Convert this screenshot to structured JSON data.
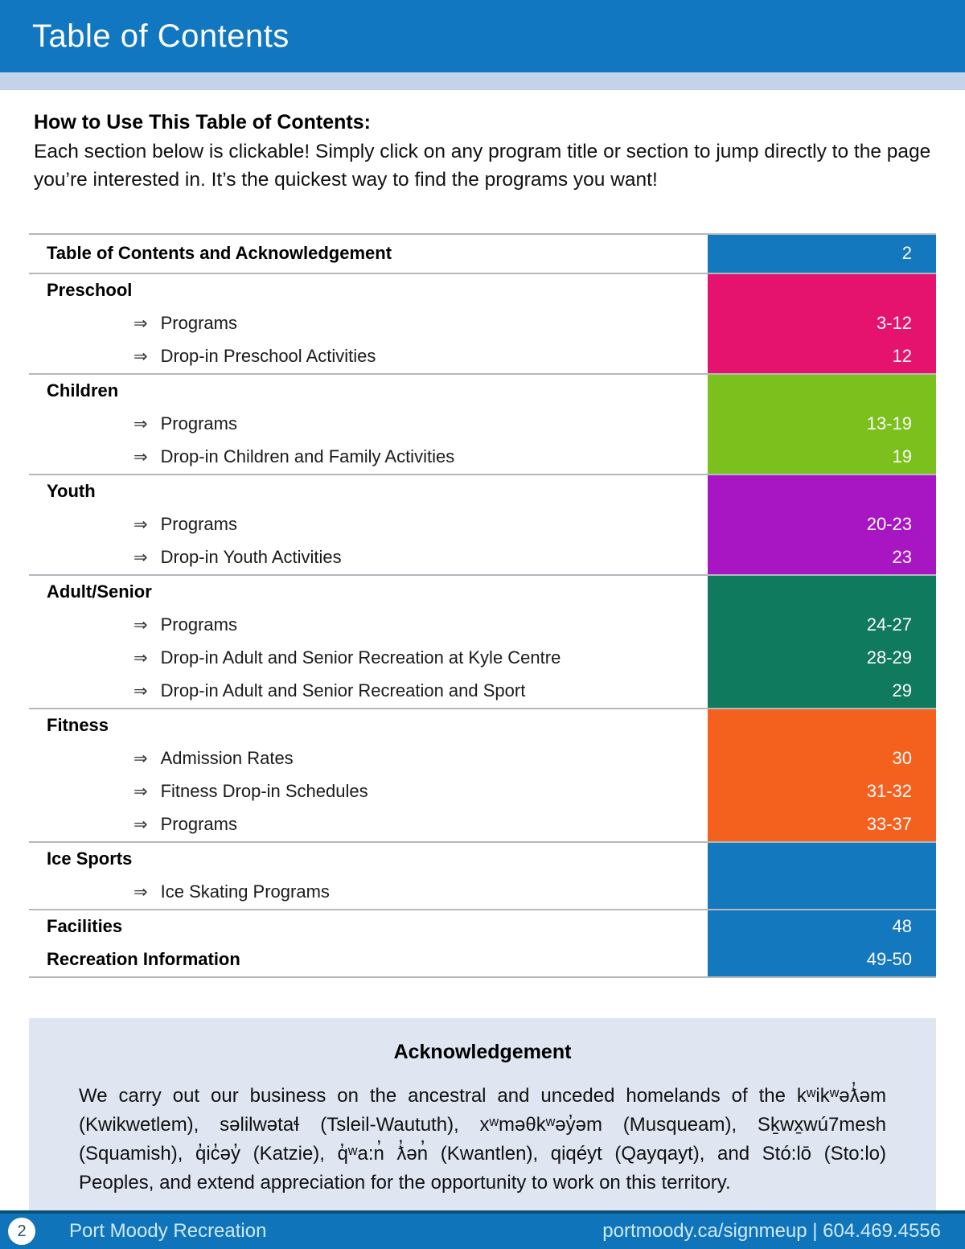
{
  "header": {
    "title": "Table of Contents"
  },
  "intro": {
    "heading": "How to Use This Table of Contents:",
    "body": "Each section below is clickable! Simply click on any program title or section to jump directly to the page you’re interested in. It’s the quickest way to find the programs you want!"
  },
  "toc": {
    "arrow_glyph": "⇒",
    "sections": [
      {
        "color": "#1478be",
        "rows": [
          {
            "type": "header",
            "label": "Table of Contents and Acknowledgement",
            "page": "2"
          }
        ]
      },
      {
        "color": "#e5136d",
        "rows": [
          {
            "type": "header",
            "label": "Preschool",
            "page": ""
          },
          {
            "type": "item",
            "label": "Programs",
            "page": "3-12"
          },
          {
            "type": "item",
            "label": "Drop-in Preschool Activities",
            "page": "12"
          }
        ]
      },
      {
        "color": "#7cc01e",
        "rows": [
          {
            "type": "header",
            "label": "Children",
            "page": ""
          },
          {
            "type": "item",
            "label": "Programs",
            "page": "13-19"
          },
          {
            "type": "item",
            "label": "Drop-in Children and Family Activities",
            "page": "19"
          }
        ]
      },
      {
        "color": "#a816c4",
        "rows": [
          {
            "type": "header",
            "label": "Youth",
            "page": ""
          },
          {
            "type": "item",
            "label": "Programs",
            "page": "20-23"
          },
          {
            "type": "item",
            "label": "Drop-in Youth Activities",
            "page": "23"
          }
        ]
      },
      {
        "color": "#107a5e",
        "rows": [
          {
            "type": "header",
            "label": "Adult/Senior",
            "page": ""
          },
          {
            "type": "item",
            "label": "Programs",
            "page": "24-27"
          },
          {
            "type": "item",
            "label": "Drop-in Adult and Senior Recreation at Kyle Centre",
            "page": "28-29"
          },
          {
            "type": "item",
            "label": "Drop-in Adult and Senior Recreation and Sport",
            "page": "29"
          }
        ]
      },
      {
        "color": "#f4611e",
        "rows": [
          {
            "type": "header",
            "label": "Fitness",
            "page": ""
          },
          {
            "type": "item",
            "label": "Admission Rates",
            "page": "30"
          },
          {
            "type": "item",
            "label": "Fitness Drop-in Schedules",
            "page": "31-32"
          },
          {
            "type": "item",
            "label": "Programs",
            "page": "33-37"
          }
        ]
      },
      {
        "color": "#1478be",
        "rows": [
          {
            "type": "header",
            "label": "Ice Sports",
            "page": ""
          },
          {
            "type": "item",
            "label": "Ice Skating Programs",
            "page": ""
          }
        ]
      },
      {
        "color": "#1478be",
        "rows": [
          {
            "type": "header",
            "label": "Facilities",
            "page": "48"
          },
          {
            "type": "header",
            "label": "Recreation Information",
            "page": "49-50"
          }
        ]
      }
    ]
  },
  "acknowledgement": {
    "heading": "Acknowledgement",
    "body": "We carry out our business on the ancestral and unceded homelands of the kʷikʷəƛ̓əm (Kwikwetlem), səlilwətaɬ (Tsleil-Waututh), xʷməθkʷəy̓əm (Musqueam), Sḵwx̱wú7mesh (Squamish), q̓ic̓əy̓ (Katzie), q̓ʷa:n̓ ƛ̓ən̓ (Kwantlen), qiqéyt (Qayqayt), and Stó:lō (Sto:lo) Peoples, and extend appreciation for the opportunity to work on this territory."
  },
  "footer": {
    "page_number": "2",
    "left_text": "Port Moody Recreation",
    "right_text": "portmoody.ca/signmeup | 604.469.4556"
  },
  "colors": {
    "header_blue": "#1177c0",
    "header_strip": "#c4d3ea",
    "footer_blue": "#1074ba",
    "footer_edge": "#0a5178",
    "ack_background": "#dfe6f2",
    "divider_gray": "#b3b8bd"
  }
}
